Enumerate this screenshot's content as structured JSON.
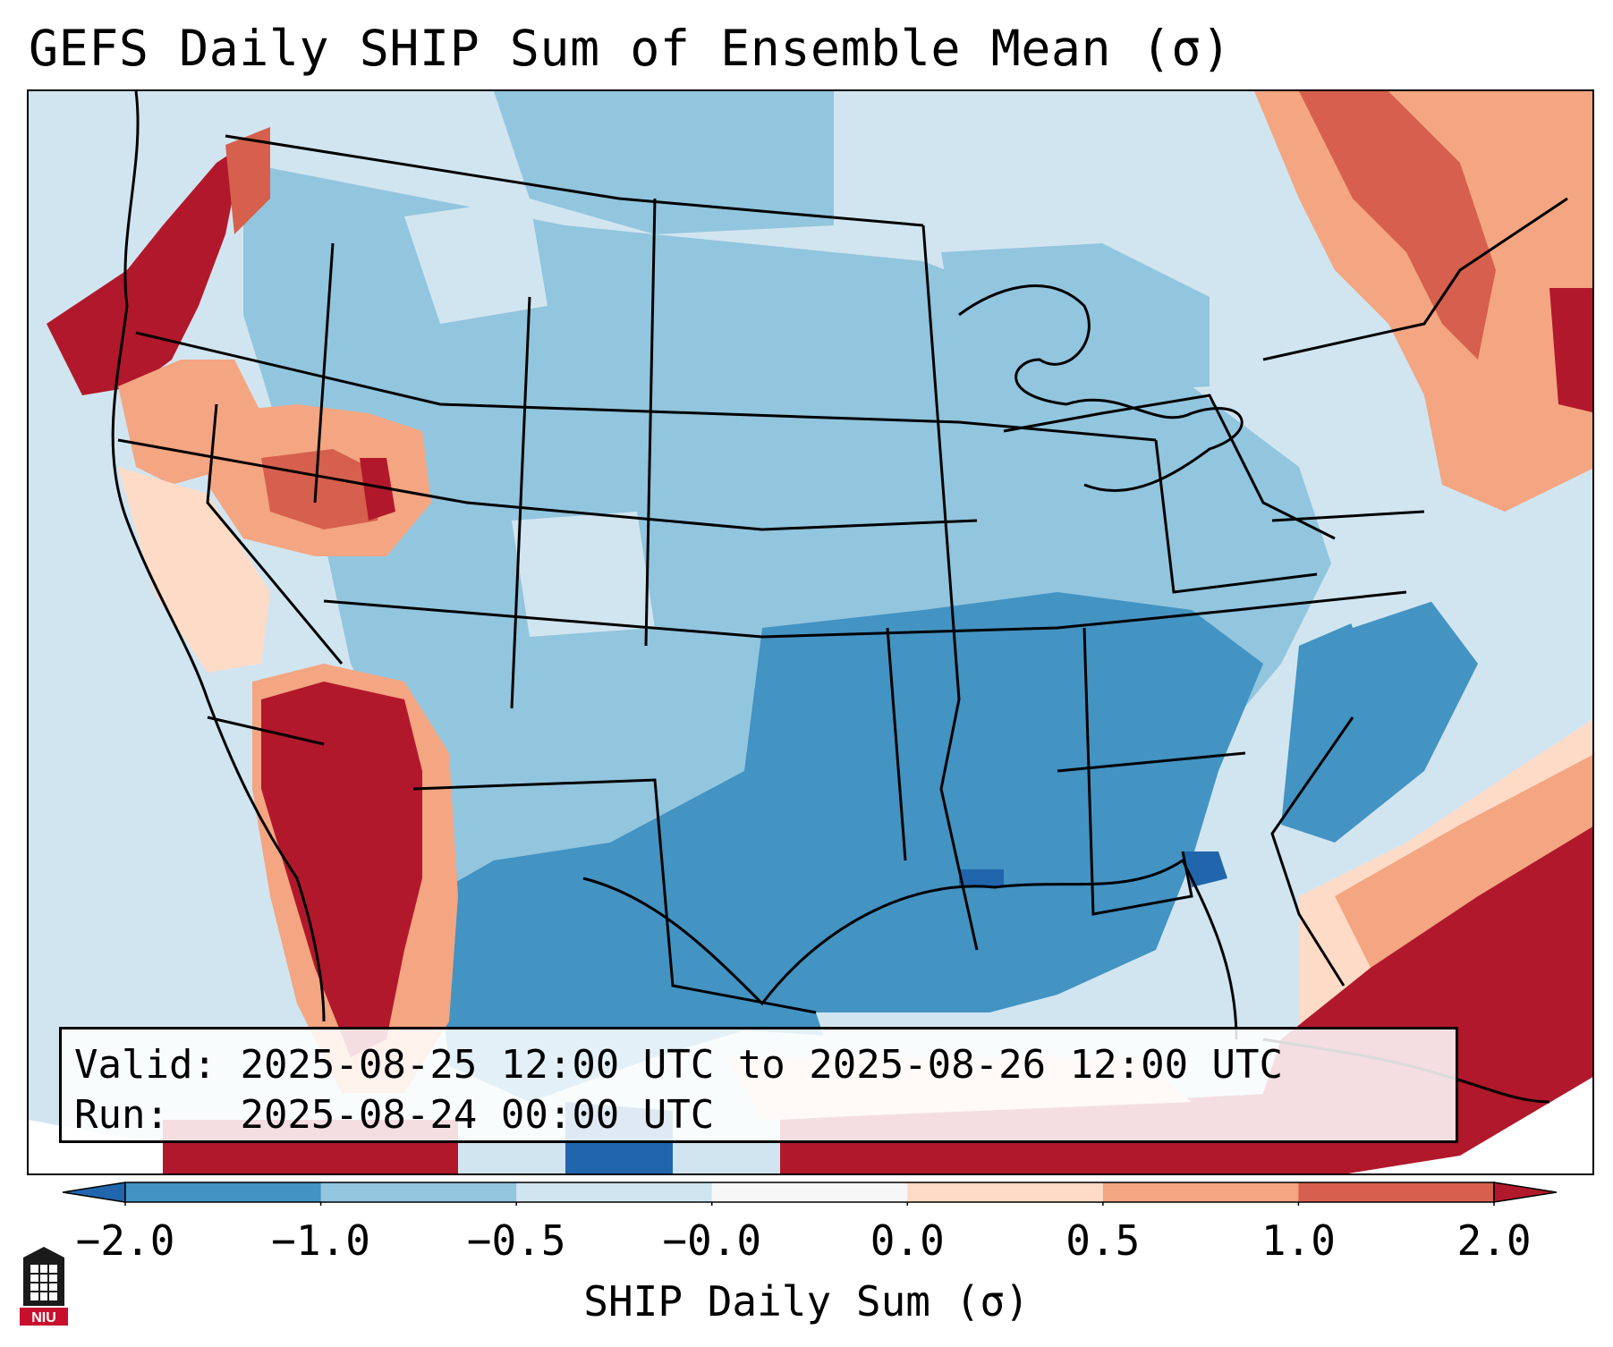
{
  "title": "GEFS Daily SHIP Sum of Ensemble Mean (σ)",
  "info": {
    "valid_label": "Valid:",
    "valid_value": "2025-08-25 12:00 UTC to 2025-08-26 12:00 UTC",
    "run_label": "Run:",
    "run_value": "2025-08-24 00:00 UTC"
  },
  "colorbar": {
    "label": "SHIP Daily Sum (σ)",
    "tick_labels": [
      "−2.0",
      "−1.0",
      "−0.5",
      "−0.0",
      "0.0",
      "0.5",
      "1.0",
      "2.0"
    ],
    "bins": [
      {
        "range": "below -2.0",
        "color": "#2166ac"
      },
      {
        "range": "-2.0 to -1.0",
        "color": "#4393c3"
      },
      {
        "range": "-1.0 to -0.5",
        "color": "#92c5de"
      },
      {
        "range": "-0.5 to -0.0",
        "color": "#d1e5f0"
      },
      {
        "range": "-0.0 to 0.0",
        "color": "#f7f7f7"
      },
      {
        "range": "0.0 to 0.5",
        "color": "#fddbc7"
      },
      {
        "range": "0.5 to 1.0",
        "color": "#f4a582"
      },
      {
        "range": "1.0 to 2.0",
        "color": "#d6604d"
      },
      {
        "range": "above 2.0",
        "color": "#b2182b"
      }
    ]
  },
  "map_regions": [
    {
      "region": "Pacific Northwest coast",
      "category": "above 2.0"
    },
    {
      "region": "Great Basin / Nevada-Idaho",
      "category": "1.0 to 2.0"
    },
    {
      "region": "Southwest / Arizona-Baja",
      "category": "above 2.0"
    },
    {
      "region": "Northern Rockies & Plains",
      "category": "-1.0 to -0.5"
    },
    {
      "region": "Southern Plains",
      "category": "-1.0 to -0.5"
    },
    {
      "region": "Lower Mississippi Valley & Southeast",
      "category": "-2.0 to -1.0"
    },
    {
      "region": "Gulf of Mexico",
      "category": "-2.0 to -1.0"
    },
    {
      "region": "New England / Maritime Canada",
      "category": "0.5 to 1.0"
    },
    {
      "region": "Western Atlantic & Caribbean",
      "category": "above 2.0"
    }
  ],
  "logo_text": "NIU"
}
